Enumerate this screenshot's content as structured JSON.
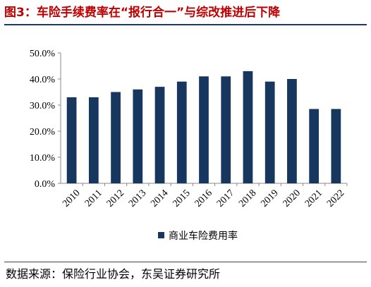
{
  "figure": {
    "title": "图3：车险手续费率在“报行合一”与综改推进后下降",
    "source": "数据来源：保险行业协会，东吴证券研究所"
  },
  "colors": {
    "title": "#c00000",
    "bar": "#17375e",
    "rule": "#1f3864",
    "axis": "#888888"
  },
  "chart_data": {
    "type": "bar",
    "title": "",
    "xlabel": "",
    "ylabel": "",
    "categories": [
      "2010",
      "2011",
      "2012",
      "2013",
      "2014",
      "2015",
      "2016",
      "2017",
      "2018",
      "2019",
      "2020",
      "2021",
      "2022"
    ],
    "series": [
      {
        "name": "商业车险费用率",
        "values": [
          33,
          33,
          35,
          36,
          37,
          39,
          41,
          41,
          43,
          39,
          40,
          28.5,
          28.5
        ]
      }
    ],
    "ylim": [
      0,
      50
    ],
    "yticks": [
      "0.0%",
      "10.0%",
      "20.0%",
      "30.0%",
      "40.0%",
      "50.0%"
    ],
    "grid": false,
    "legend_position": "bottom"
  }
}
